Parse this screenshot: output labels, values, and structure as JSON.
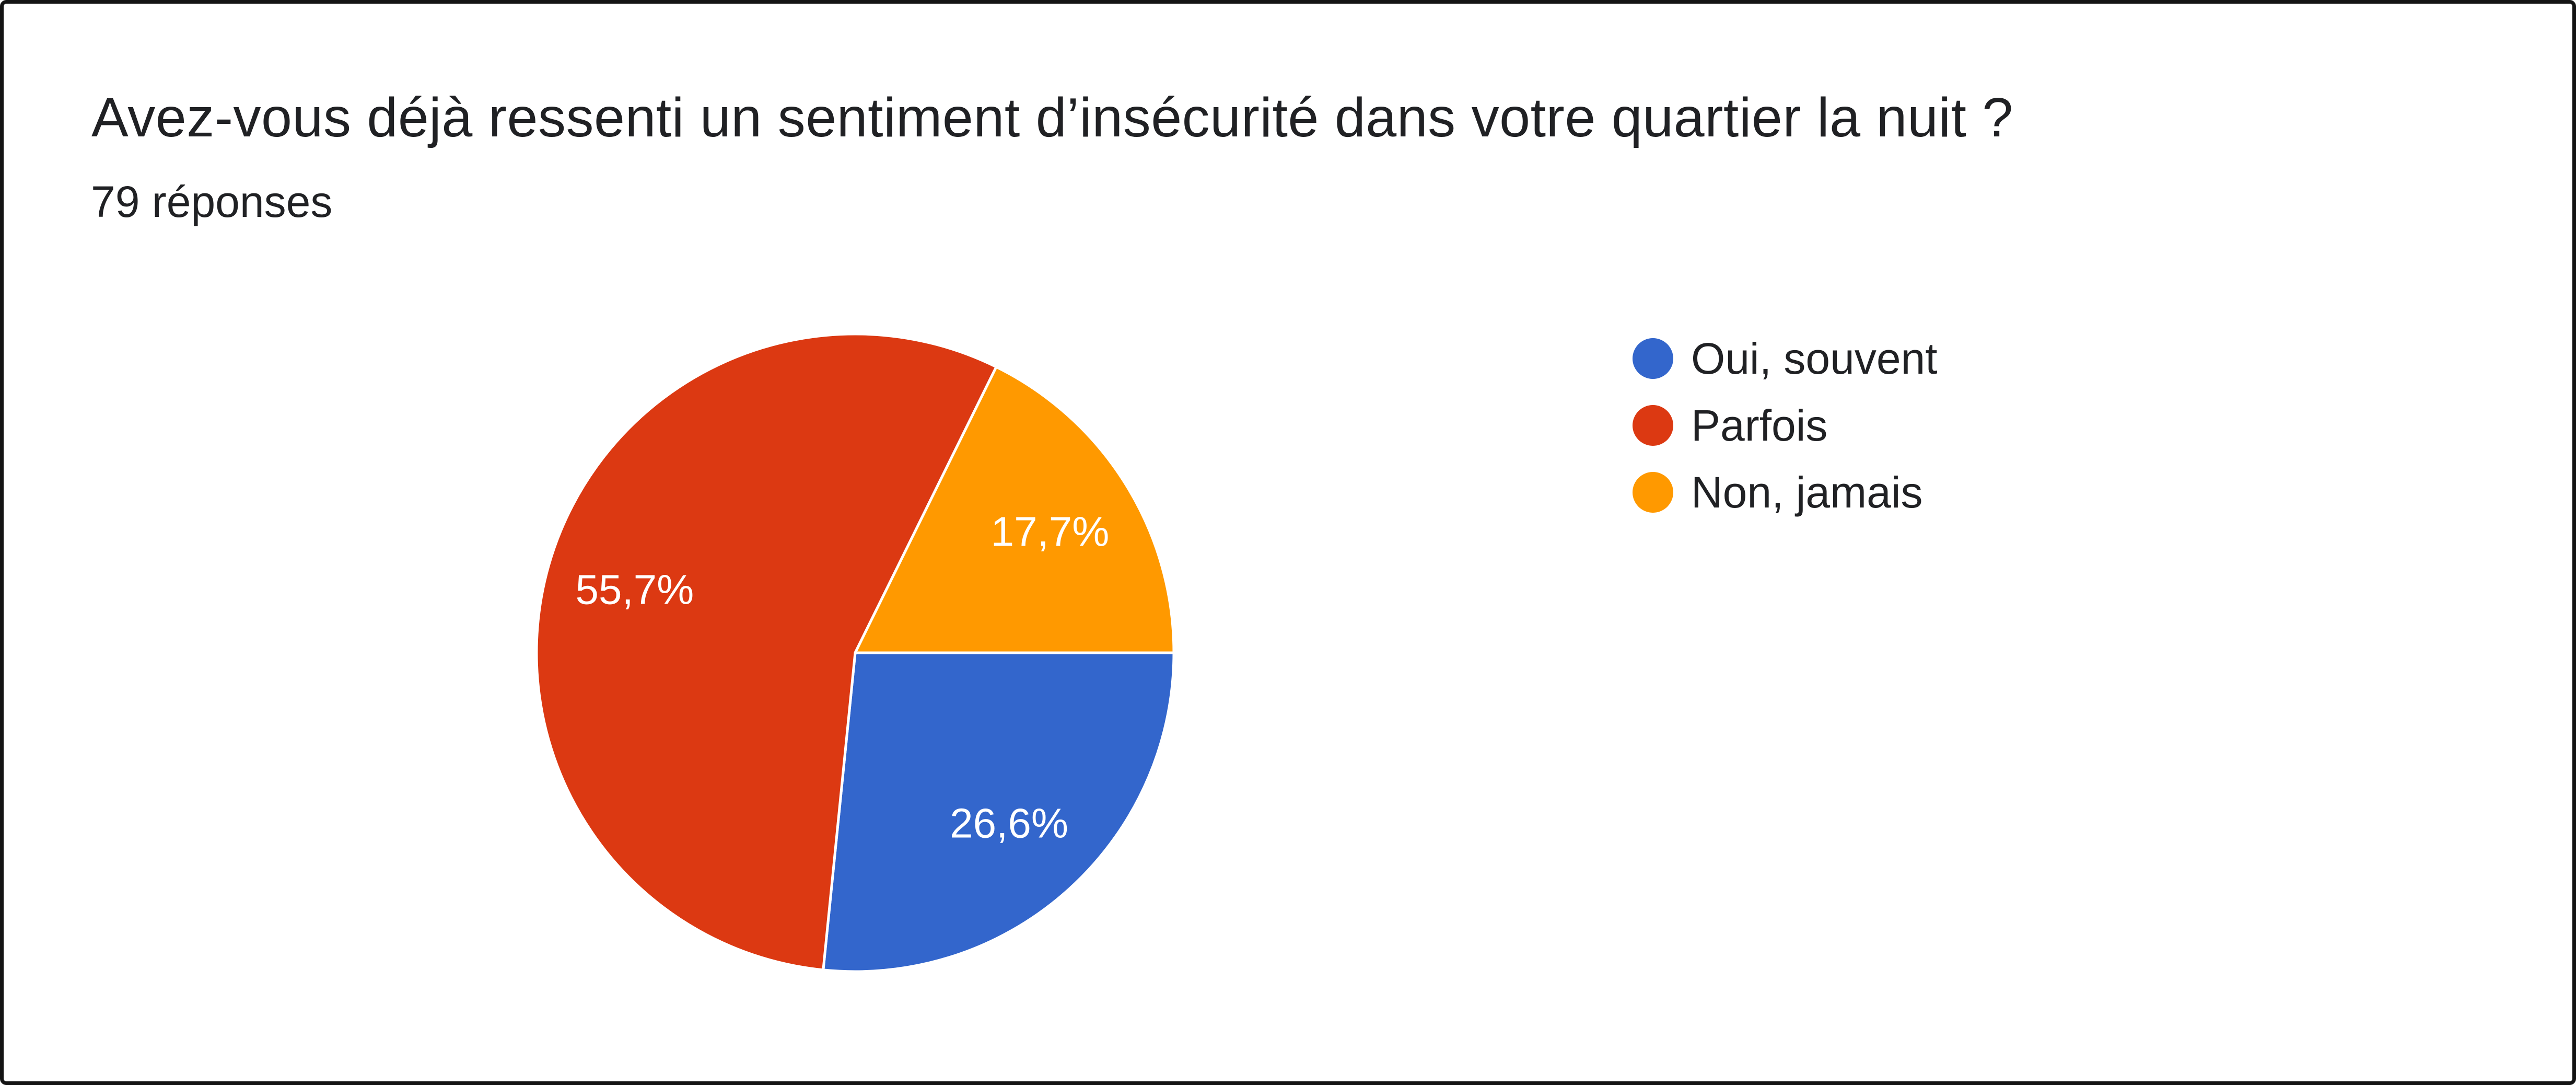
{
  "page": {
    "title": "Avez-vous déjà ressenti un sentiment d’insécurité dans votre quartier la nuit ?",
    "response_count": "79 réponses"
  },
  "chart_data": {
    "type": "pie",
    "title": "Avez-vous déjà ressenti un sentiment d’insécurité dans votre quartier la nuit ?",
    "subtitle": "79 réponses",
    "categories": [
      "Oui, souvent",
      "Parfois",
      "Non, jamais"
    ],
    "values": [
      26.6,
      55.7,
      17.7
    ],
    "unit": "percent",
    "display_labels": [
      "26,6%",
      "55,7%",
      "17,7%"
    ],
    "colors": [
      "#3366CC",
      "#DC3912",
      "#FF9900"
    ],
    "label_text_color": "#ffffff",
    "slice_separator_color": "#ffffff",
    "start_angle": "east-clockwise",
    "legend_position": "right",
    "legend": [
      {
        "label": "Oui, souvent",
        "color": "#3366CC"
      },
      {
        "label": "Parfois",
        "color": "#DC3912"
      },
      {
        "label": "Non, jamais",
        "color": "#FF9900"
      }
    ]
  }
}
